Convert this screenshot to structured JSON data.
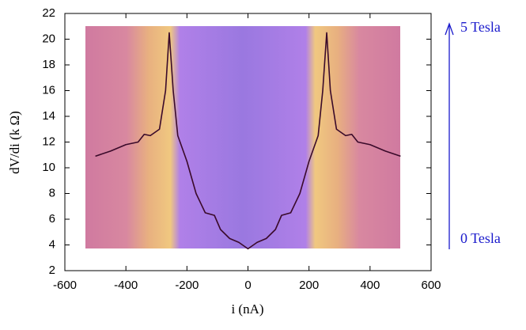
{
  "chart_data": {
    "type": "line",
    "x_label": "i (nA)",
    "y_label": "dV/di (k Ω)",
    "annotations": [
      "5 Tesla",
      "0 Tesla"
    ],
    "x": [
      -500,
      -450,
      -400,
      -360,
      -340,
      -320,
      -290,
      -270,
      -258,
      -245,
      -230,
      -200,
      -170,
      -140,
      -110,
      -90,
      -60,
      -30,
      0,
      30,
      60,
      90,
      110,
      140,
      170,
      200,
      230,
      245,
      258,
      270,
      290,
      320,
      340,
      360,
      400,
      450,
      500
    ],
    "series": [
      {
        "color": "#3a0a2a",
        "values": [
          10.9,
          11.3,
          11.8,
          12.0,
          12.6,
          12.5,
          13.0,
          16.0,
          20.5,
          16.0,
          12.5,
          10.5,
          8.0,
          6.5,
          6.3,
          5.2,
          4.5,
          4.2,
          3.7,
          4.2,
          4.5,
          5.2,
          6.3,
          6.5,
          8.0,
          10.5,
          12.5,
          16.0,
          20.5,
          16.0,
          13.0,
          12.5,
          12.6,
          12.0,
          11.8,
          11.3,
          10.9
        ]
      }
    ],
    "xlim": [
      -600,
      600
    ],
    "ylim": [
      2,
      22
    ],
    "xticks": [
      -600,
      -400,
      -200,
      0,
      200,
      400,
      600
    ],
    "yticks": [
      2,
      4,
      6,
      8,
      10,
      12,
      14,
      16,
      18,
      20,
      22
    ]
  }
}
